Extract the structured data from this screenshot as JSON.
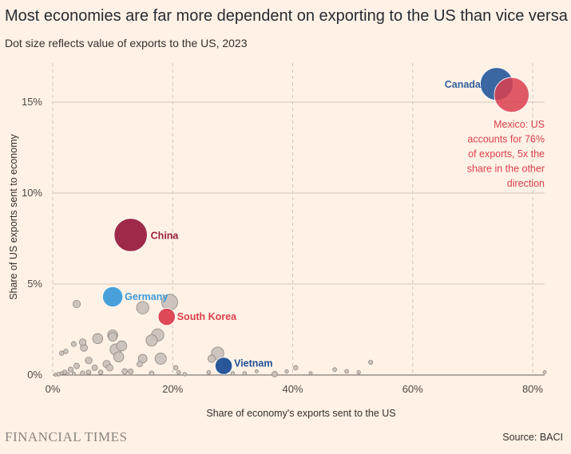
{
  "title": "Most economies are far more dependent on exporting to the US than vice versa",
  "subtitle": "Dot size reflects value of exports to the US, 2023",
  "source": "Source: BACI",
  "publisher": "FINANCIAL TIMES",
  "colors": {
    "background": "#FFF1E5",
    "grid": "#CFC5BB",
    "other": "#C9C1BA",
    "canada": "#2F5F9E",
    "mexico": "#DB3F4F",
    "china": "#9A1E3F",
    "germany": "#3E9BD9",
    "south_korea": "#DB3F4F",
    "vietnam": "#1F4F96"
  },
  "chart_data": {
    "type": "scatter",
    "xlabel": "Share of economy's exports sent to the US",
    "ylabel": "Share of US exports sent to economy",
    "x_unit": "%",
    "y_unit": "%",
    "xlim": [
      0,
      82
    ],
    "ylim": [
      0,
      17.5
    ],
    "x_ticks": [
      "0%",
      "20%",
      "40%",
      "60%",
      "80%"
    ],
    "x_tick_values": [
      0,
      20,
      40,
      60,
      80
    ],
    "y_ticks": [
      "0%",
      "5%",
      "10%",
      "15%"
    ],
    "y_tick_values": [
      0,
      5,
      10,
      15
    ],
    "grid": "dashed vertical at x ticks, solid horizontal at y ticks",
    "highlighted": [
      {
        "name": "Canada",
        "x": 74,
        "y": 16.0,
        "size": 420,
        "color_key": "canada"
      },
      {
        "name": "Mexico",
        "x": 76.5,
        "y": 15.4,
        "size": 475,
        "color_key": "mexico"
      },
      {
        "name": "China",
        "x": 13,
        "y": 7.7,
        "size": 430,
        "color_key": "china"
      },
      {
        "name": "Germany",
        "x": 10,
        "y": 4.3,
        "size": 160,
        "color_key": "germany"
      },
      {
        "name": "South Korea",
        "x": 19,
        "y": 3.2,
        "size": 115,
        "color_key": "south_korea"
      },
      {
        "name": "Vietnam",
        "x": 28.5,
        "y": 0.5,
        "size": 115,
        "color_key": "vietnam"
      }
    ],
    "others": [
      {
        "x": 4,
        "y": 3.9,
        "size": 22
      },
      {
        "x": 15,
        "y": 3.7,
        "size": 60
      },
      {
        "x": 19.5,
        "y": 4.0,
        "size": 100
      },
      {
        "x": 17.5,
        "y": 2.2,
        "size": 60
      },
      {
        "x": 16.5,
        "y": 1.9,
        "size": 50
      },
      {
        "x": 10,
        "y": 2.2,
        "size": 40
      },
      {
        "x": 10,
        "y": 2.1,
        "size": 30
      },
      {
        "x": 7.5,
        "y": 2.0,
        "size": 40
      },
      {
        "x": 11.5,
        "y": 1.6,
        "size": 40
      },
      {
        "x": 10.5,
        "y": 1.4,
        "size": 50
      },
      {
        "x": 5,
        "y": 1.8,
        "size": 18
      },
      {
        "x": 5.2,
        "y": 1.5,
        "size": 20
      },
      {
        "x": 3.5,
        "y": 1.7,
        "size": 10
      },
      {
        "x": 2.2,
        "y": 1.3,
        "size": 8
      },
      {
        "x": 1.5,
        "y": 1.2,
        "size": 8
      },
      {
        "x": 11,
        "y": 1.0,
        "size": 40
      },
      {
        "x": 15,
        "y": 0.9,
        "size": 30
      },
      {
        "x": 18,
        "y": 0.9,
        "size": 50
      },
      {
        "x": 6,
        "y": 0.8,
        "size": 18
      },
      {
        "x": 9,
        "y": 0.6,
        "size": 22
      },
      {
        "x": 9.5,
        "y": 0.4,
        "size": 18
      },
      {
        "x": 4,
        "y": 0.5,
        "size": 12
      },
      {
        "x": 7,
        "y": 0.4,
        "size": 12
      },
      {
        "x": 3,
        "y": 0.3,
        "size": 10
      },
      {
        "x": 12,
        "y": 0.2,
        "size": 12
      },
      {
        "x": 13,
        "y": 0.2,
        "size": 10
      },
      {
        "x": 14.5,
        "y": 0.6,
        "size": 12
      },
      {
        "x": 20.5,
        "y": 0.4,
        "size": 8
      },
      {
        "x": 27.5,
        "y": 1.2,
        "size": 60
      },
      {
        "x": 26.5,
        "y": 0.9,
        "size": 22
      },
      {
        "x": 29,
        "y": 0.6,
        "size": 18
      },
      {
        "x": 40.5,
        "y": 0.4,
        "size": 8
      },
      {
        "x": 39,
        "y": 0.2,
        "size": 5
      },
      {
        "x": 47,
        "y": 0.3,
        "size": 6
      },
      {
        "x": 49,
        "y": 0.2,
        "size": 6
      },
      {
        "x": 51,
        "y": 0.15,
        "size": 5
      },
      {
        "x": 53,
        "y": 0.7,
        "size": 7
      },
      {
        "x": 37,
        "y": 0.05,
        "size": 12
      },
      {
        "x": 34,
        "y": 0.2,
        "size": 4
      },
      {
        "x": 32,
        "y": 0.1,
        "size": 5
      },
      {
        "x": 26,
        "y": 0.15,
        "size": 6
      },
      {
        "x": 30,
        "y": 0.1,
        "size": 5
      },
      {
        "x": 21,
        "y": 0.15,
        "size": 6
      },
      {
        "x": 22,
        "y": 0.05,
        "size": 5
      },
      {
        "x": 16.5,
        "y": 0.1,
        "size": 8
      },
      {
        "x": 8,
        "y": 0.15,
        "size": 8
      },
      {
        "x": 6,
        "y": 0.15,
        "size": 8
      },
      {
        "x": 5,
        "y": 0.1,
        "size": 8
      },
      {
        "x": 2,
        "y": 0.15,
        "size": 8
      },
      {
        "x": 1,
        "y": 0.05,
        "size": 6
      },
      {
        "x": 0.5,
        "y": 0.02,
        "size": 4
      },
      {
        "x": 1.5,
        "y": 0.1,
        "size": 4
      },
      {
        "x": 2.5,
        "y": 0.05,
        "size": 4
      },
      {
        "x": 3.5,
        "y": 0.08,
        "size": 4
      },
      {
        "x": 82,
        "y": 0.15,
        "size": 4
      },
      {
        "x": 43,
        "y": 0.1,
        "size": 4
      }
    ],
    "annotations": [
      {
        "lines": [
          "Mexico: US",
          "accounts for 76%",
          "of exports, 5x the",
          "share in the other",
          "direction"
        ],
        "color_key": "mexico"
      }
    ]
  }
}
